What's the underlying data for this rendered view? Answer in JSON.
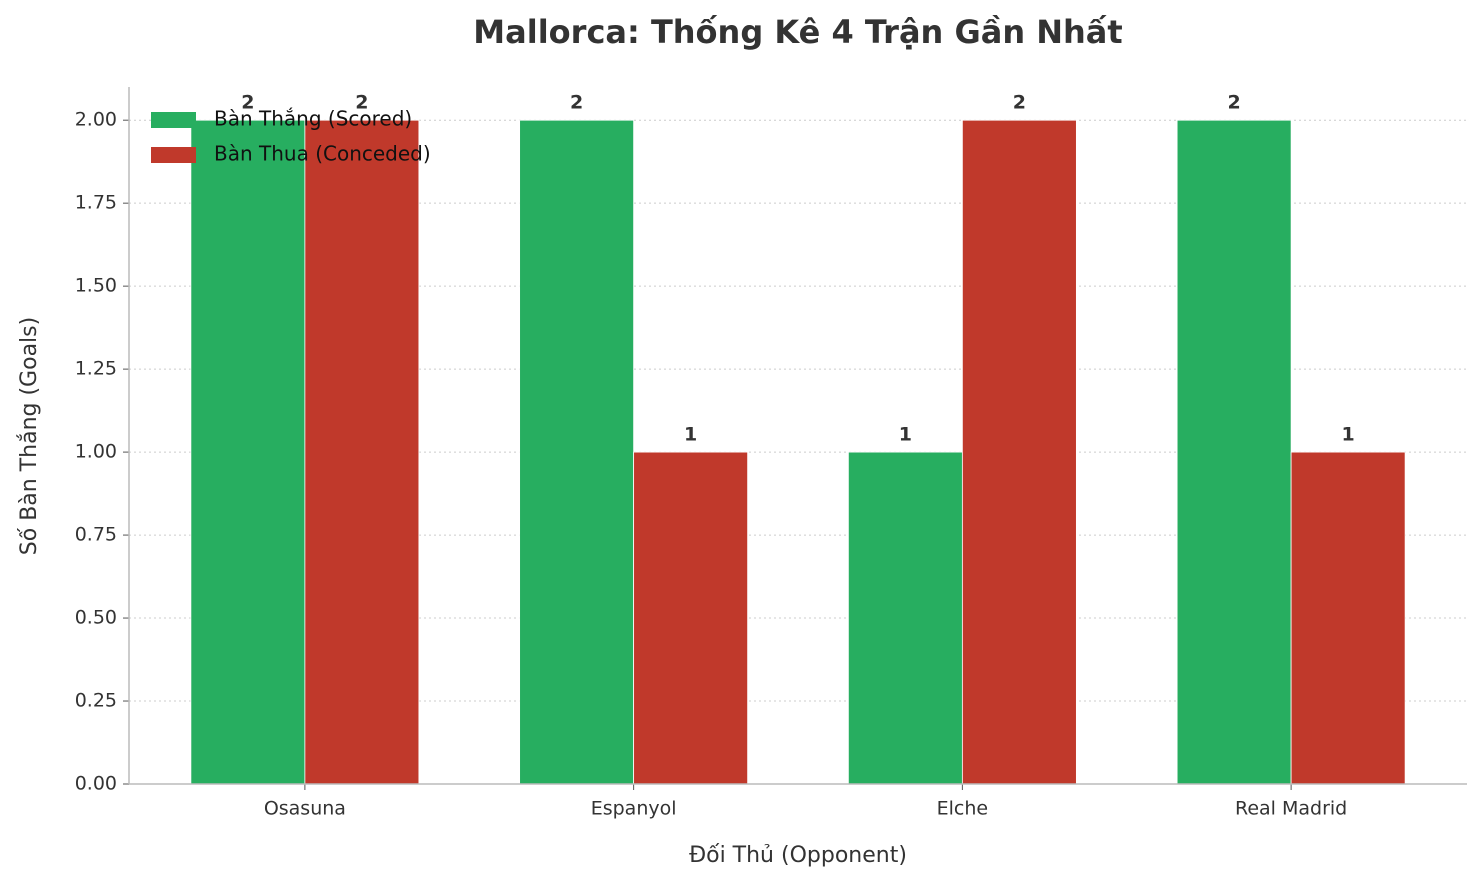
{
  "chart_data": {
    "type": "bar",
    "title": "Mallorca: Thống Kê 4 Trận Gần Nhất",
    "x_label": "Đối Thủ (Opponent)",
    "y_label": "Số Bàn Thắng (Goals)",
    "categories": [
      "Osasuna",
      "Espanyol",
      "Elche",
      "Real Madrid"
    ],
    "series": [
      {
        "name": "Bàn Thắng (Scored)",
        "color": "#27ae60",
        "values": [
          2,
          2,
          1,
          2
        ]
      },
      {
        "name": "Bàn Thua (Conceded)",
        "color": "#c0392b",
        "values": [
          2,
          1,
          2,
          1
        ]
      }
    ],
    "ylim": [
      0,
      2.1
    ],
    "yticks": [
      {
        "value": 0,
        "label": "0.00"
      },
      {
        "value": 0.25,
        "label": "0.25"
      },
      {
        "value": 0.5,
        "label": "0.50"
      },
      {
        "value": 0.75,
        "label": "0.75"
      },
      {
        "value": 1,
        "label": "1.00"
      },
      {
        "value": 1.25,
        "label": "1.25"
      },
      {
        "value": 1.5,
        "label": "1.50"
      },
      {
        "value": 1.75,
        "label": "1.75"
      },
      {
        "value": 2,
        "label": "2.00"
      }
    ],
    "grid": true,
    "legend": "upper-left"
  }
}
